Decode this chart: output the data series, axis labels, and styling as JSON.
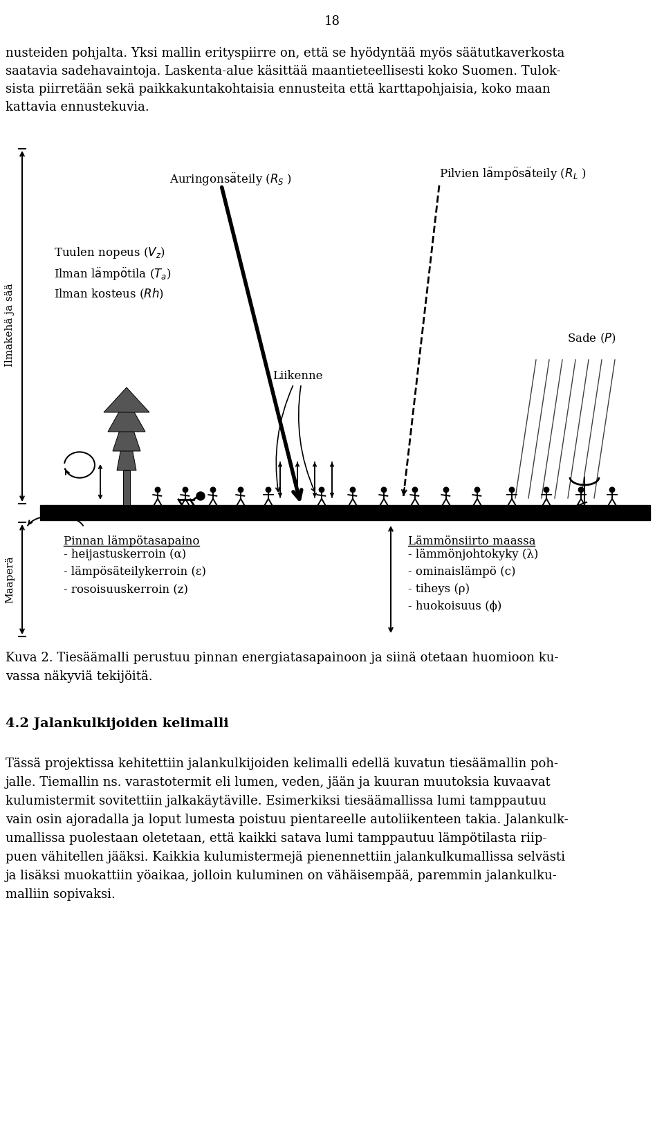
{
  "page_number": "18",
  "bg_color": "#ffffff",
  "text_color": "#000000",
  "para1": "nusteiden pohjalta. Yksi mallin erityspiirre on, että se hyödyntää myös säätutkaverkosta",
  "para1b": "saatavia sadehavaintoja. Laskenta-alue käsittää maantieteellisesti koko Suomen. Tulok-",
  "para1c": "sista piirretään sekä paikkakuntakohtaisia ennusteita että karttapohjaisia, koko maan",
  "para1d": "kattavia ennustekuvia.",
  "label_ilmakehä": "Ilmakehä ja sää",
  "label_maaperä": "Maaperä",
  "label_pinnan": "Pinnan lämpötasapaino",
  "label_heijastus": "- heijastuskerroin (α)",
  "label_lamposaateil": "- lämpösäteilykerroin (ε)",
  "label_rosoisuus": "- rosoisuuskerroin (z)",
  "label_lammsiirto": "Lämmönsiirto maassa",
  "label_lammjohto": "- lämmönjohtokyky (λ)",
  "label_ominais": "- ominaislämpö (c)",
  "label_tiheys": "- tiheys (ρ)",
  "label_huokoisuus": "- huokoisuus (ϕ)",
  "kuva_caption": "Kuva 2. Tiesäämalli perustuu pinnan energiatasapainoon ja siinä otetaan huomioon ku-",
  "kuva_caption2": "vassa näkyviä tekijöitä.",
  "section_header": "4.2 Jalankulkijoiden kelimalli",
  "body1": "Tässä projektissa kehitettiin jalankulkijoiden kelimalli edellä kuvatun tiesäämallin poh-",
  "body1b": "jalle. Tiemallin ns. varastotermit eli lumen, veden, jään ja kuuran muutoksia kuvaavat",
  "body1c": "kulumistermit sovitettiin jalkakäytäville. Esimerkiksi tiesäämallissa lumi tamppautuu",
  "body1d": "vain osin ajoradalla ja loput lumesta poistuu pientareelle autoliikenteen takia. Jalankulk-",
  "body1e": "umallissa puolestaan oletetaan, että kaikki satava lumi tamppautuu lämpötilasta riip-",
  "body1f": "puen vähitellen jääksi. Kaikkia kulumistermejä pienennettiin jalankulkumallissa selvästi",
  "body1g": "ja lisäksi muokattiin yöaikaa, jolloin kuluminen on vähäisempää, paremmin jalankulku-",
  "body1h": "malliin sopivaksi."
}
